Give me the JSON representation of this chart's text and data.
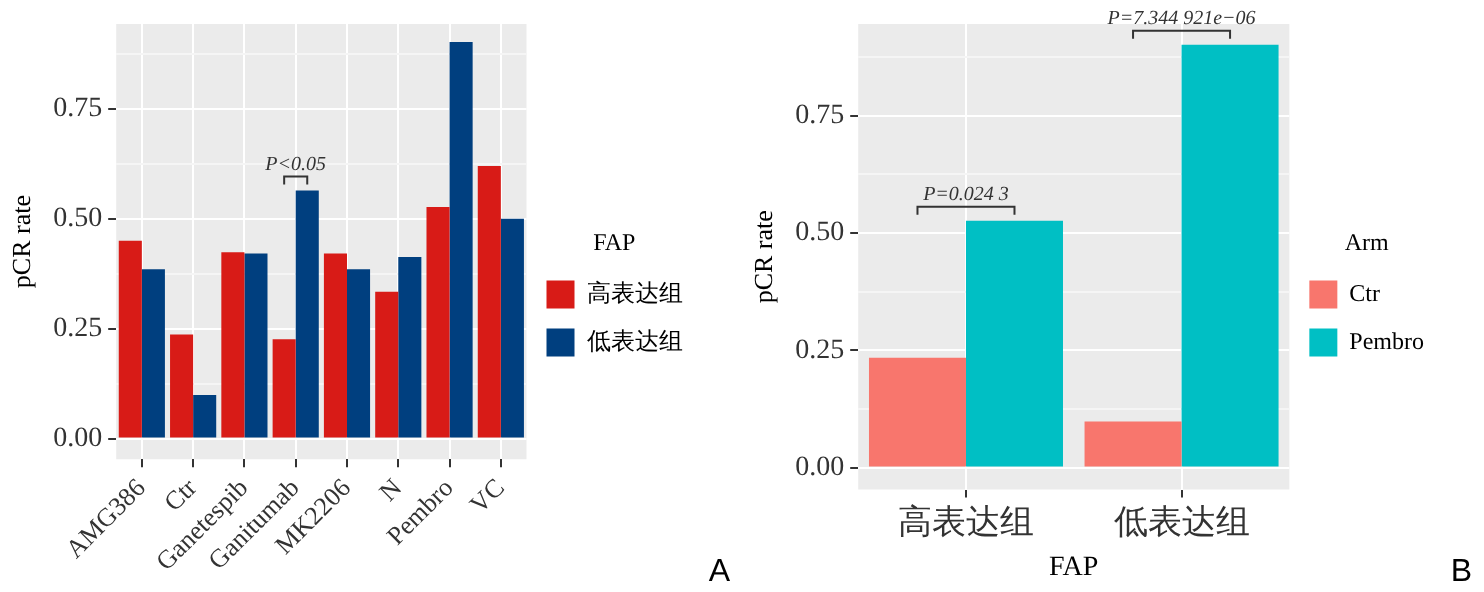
{
  "chart_data": [
    {
      "type": "bar",
      "ylabel": "pCR rate",
      "legend_title": "FAP",
      "legend": "right",
      "grid": true,
      "categories": [
        "AMG386",
        "Ctr",
        "Ganetespib",
        "Ganitumab",
        "MK2206",
        "N",
        "Pembro",
        "VC"
      ],
      "series": [
        {
          "name": "高表达组",
          "color": "#d81b17",
          "values": [
            0.45,
            0.237,
            0.424,
            0.226,
            0.421,
            0.334,
            0.527,
            0.62
          ]
        },
        {
          "name": "低表达组",
          "color": "#003f7f",
          "values": [
            0.385,
            0.099,
            0.421,
            0.564,
            0.385,
            0.413,
            0.902,
            0.5
          ]
        }
      ],
      "ylim": [
        -0.047,
        0.943
      ],
      "yticks": [
        {
          "value": 0,
          "label": "0.00"
        },
        {
          "value": 0.125,
          "label": null
        },
        {
          "value": 0.25,
          "label": "0.25"
        },
        {
          "value": 0.375,
          "label": null
        },
        {
          "value": 0.5,
          "label": "0.50"
        },
        {
          "value": 0.625,
          "label": null
        },
        {
          "value": 0.75,
          "label": "0.75"
        },
        {
          "value": 0.875,
          "label": null
        }
      ],
      "annotations": [
        {
          "text": "P<0.05",
          "x": "Ganitumab",
          "y": 0.564
        },
        "A"
      ]
    },
    {
      "type": "bar",
      "ylabel": "pCR rate",
      "xlabel": "FAP",
      "legend_title": "Arm",
      "legend": "right",
      "grid": true,
      "categories": [
        "高表达组",
        "低表达组"
      ],
      "series": [
        {
          "name": "Ctr",
          "color": "#f8766d",
          "values": [
            0.234,
            0.098
          ]
        },
        {
          "name": "Pembro",
          "color": "#00bfc4",
          "values": [
            0.526,
            0.901
          ]
        }
      ],
      "ylim": [
        -0.047,
        0.945
      ],
      "yticks": [
        {
          "value": 0,
          "label": "0.00"
        },
        {
          "value": 0.125,
          "label": null
        },
        {
          "value": 0.25,
          "label": "0.25"
        },
        {
          "value": 0.375,
          "label": null
        },
        {
          "value": 0.5,
          "label": "0.50"
        },
        {
          "value": 0.625,
          "label": null
        },
        {
          "value": 0.75,
          "label": "0.75"
        },
        {
          "value": 0.875,
          "label": null
        }
      ],
      "annotations": [
        {
          "text": "P=0.024 3",
          "x": "高表达组",
          "y": 0.526
        },
        {
          "text": "P=7.344 921e−06",
          "x": "低表达组",
          "y": 0.901
        },
        "B"
      ]
    }
  ]
}
